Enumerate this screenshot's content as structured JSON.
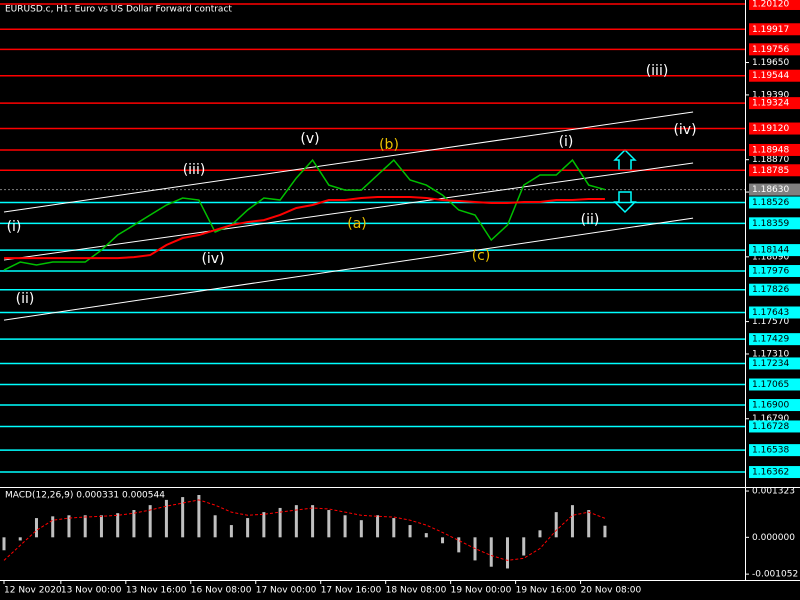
{
  "chart_data": [
    {
      "type": "line",
      "title": "EURUSD.c, H1:  Euro vs US Dollar Forward contract",
      "x": [
        0,
        4,
        8,
        12,
        16,
        20,
        24,
        28,
        32,
        36,
        40,
        44,
        48,
        52,
        56,
        60,
        64,
        68,
        72,
        76,
        80,
        84,
        88,
        92,
        96,
        100,
        104,
        108,
        112,
        116,
        120,
        124,
        128,
        132,
        136,
        140,
        144,
        148
      ],
      "series": [
        {
          "color": "#00c000",
          "values": [
            1.17984,
            1.18048,
            1.18024,
            1.18048,
            1.18048,
            1.18048,
            1.18144,
            1.18265,
            1.18345,
            1.18426,
            1.18506,
            1.18562,
            1.18546,
            1.18289,
            1.18345,
            1.18466,
            1.18562,
            1.18546,
            1.18723,
            1.18867,
            1.18666,
            1.18626,
            1.18626,
            1.18747,
            1.18867,
            1.18707,
            1.18666,
            1.18586,
            1.18466,
            1.18426,
            1.18225,
            1.18345,
            1.18666,
            1.18747,
            1.18747,
            1.18867,
            1.18666,
            1.1863
          ]
        },
        {
          "color": "#ff0000",
          "values": [
            1.1808,
            1.1808,
            1.1808,
            1.1808,
            1.1808,
            1.1808,
            1.1808,
            1.1808,
            1.18088,
            1.18104,
            1.18185,
            1.18241,
            1.18265,
            1.18305,
            1.18345,
            1.18369,
            1.18385,
            1.18426,
            1.18482,
            1.18506,
            1.18546,
            1.18546,
            1.18562,
            1.1857,
            1.1857,
            1.1857,
            1.18562,
            1.18546,
            1.18538,
            1.1853,
            1.18522,
            1.18522,
            1.1853,
            1.1853,
            1.18546,
            1.18546,
            1.18554,
            1.18554
          ]
        }
      ],
      "xlim": [
        0,
        182
      ],
      "xticks": [
        {
          "value": 0,
          "label": "12 Nov 2020"
        },
        {
          "value": 14,
          "label": "13 Nov 00:00"
        },
        {
          "value": 30,
          "label": "13 Nov 16:00"
        },
        {
          "value": 46,
          "label": "16 Nov 08:00"
        },
        {
          "value": 62,
          "label": "17 Nov 00:00"
        },
        {
          "value": 78,
          "label": "17 Nov 16:00"
        },
        {
          "value": 94,
          "label": "18 Nov 08:00"
        },
        {
          "value": 110,
          "label": "19 Nov 00:00"
        },
        {
          "value": 126,
          "label": "19 Nov 16:00"
        },
        {
          "value": 142,
          "label": "20 Nov 08:00"
        }
      ],
      "ylim": [
        1.16242,
        1.20152
      ],
      "yticks": [
        {
          "value": 1.1965,
          "label": "1.19650"
        },
        {
          "value": 1.1939,
          "label": "1.19390"
        },
        {
          "value": 1.1887,
          "label": "1.18870"
        },
        {
          "value": 1.1861,
          "label": "1.18610"
        },
        {
          "value": 1.1809,
          "label": "1.18090"
        },
        {
          "value": 1.1757,
          "label": "1.17570"
        },
        {
          "value": 1.1731,
          "label": "1.17310"
        },
        {
          "value": 1.1679,
          "label": "1.16790"
        }
      ],
      "levels": [
        {
          "value": 1.2012,
          "label": "1.20120",
          "color": "#ff0000"
        },
        {
          "value": 1.19917,
          "label": "1.19917",
          "color": "#ff0000"
        },
        {
          "value": 1.19756,
          "label": "1.19756",
          "color": "#ff0000"
        },
        {
          "value": 1.19544,
          "label": "1.19544",
          "color": "#ff0000"
        },
        {
          "value": 1.19324,
          "label": "1.19324",
          "color": "#ff0000"
        },
        {
          "value": 1.1912,
          "label": "1.19120",
          "color": "#ff0000"
        },
        {
          "value": 1.18948,
          "label": "1.18948",
          "color": "#ff0000"
        },
        {
          "value": 1.18785,
          "label": "1.18785",
          "color": "#ff0000"
        },
        {
          "value": 1.18526,
          "label": "1.18526",
          "color": "#00ffff"
        },
        {
          "value": 1.18359,
          "label": "1.18359",
          "color": "#00ffff"
        },
        {
          "value": 1.18144,
          "label": "1.18144",
          "color": "#00ffff"
        },
        {
          "value": 1.17976,
          "label": "1.17976",
          "color": "#00ffff"
        },
        {
          "value": 1.17826,
          "label": "1.17826",
          "color": "#00ffff"
        },
        {
          "value": 1.17643,
          "label": "1.17643",
          "color": "#00ffff"
        },
        {
          "value": 1.17429,
          "label": "1.17429",
          "color": "#00ffff"
        },
        {
          "value": 1.17234,
          "label": "1.17234",
          "color": "#00ffff"
        },
        {
          "value": 1.17065,
          "label": "1.17065",
          "color": "#00ffff"
        },
        {
          "value": 1.169,
          "label": "1.16900",
          "color": "#00ffff"
        },
        {
          "value": 1.16728,
          "label": "1.16728",
          "color": "#00ffff"
        },
        {
          "value": 1.16538,
          "label": "1.16538",
          "color": "#00ffff"
        },
        {
          "value": 1.16362,
          "label": "1.16362",
          "color": "#00ffff"
        }
      ],
      "current_price": {
        "value": 1.1863,
        "label": "1.18630"
      },
      "trendlines": [
        {
          "x": [
            0,
            169.7
          ],
          "y": [
            1.1845,
            1.19253
          ]
        },
        {
          "x": [
            0,
            169.7
          ],
          "y": [
            1.18064,
            1.18843
          ]
        },
        {
          "x": [
            0,
            169.7
          ],
          "y": [
            1.17582,
            1.18401
          ]
        }
      ],
      "wave_labels": [
        {
          "text": "(i)",
          "color": "#ffffff"
        },
        {
          "text": "(ii)",
          "color": "#ffffff"
        },
        {
          "text": "(iii)",
          "color": "#ffffff"
        },
        {
          "text": "(iv)",
          "color": "#ffffff"
        },
        {
          "text": "(v)",
          "color": "#ffffff"
        },
        {
          "text": "(a)",
          "color": "#e8c000"
        },
        {
          "text": "(b)",
          "color": "#e8c000"
        },
        {
          "text": "(c)",
          "color": "#e8c000"
        },
        {
          "text": "(i)",
          "color": "#ffffff"
        },
        {
          "text": "(ii)",
          "color": "#ffffff"
        },
        {
          "text": "(iii)",
          "color": "#ffffff"
        },
        {
          "text": "(iv)",
          "color": "#ffffff"
        }
      ]
    },
    {
      "type": "bar",
      "title": "MACD(12,26,9) 0.000331 0.000544",
      "series": [
        {
          "color": "#c0c0c0",
          "values": [
            -0.00037,
            -9e-05,
            0.00055,
            0.0006,
            0.00063,
            0.00063,
            0.00063,
            0.00069,
            0.00078,
            0.00092,
            0.00107,
            0.00115,
            0.00121,
            0.00063,
            0.00035,
            0.00055,
            0.00072,
            0.00084,
            0.00092,
            0.00092,
            0.00078,
            0.00063,
            0.00049,
            0.00063,
            0.00055,
            0.00035,
            0.00012,
            -0.00017,
            -0.00043,
            -0.00066,
            -0.00084,
            -0.00089,
            -0.00052,
            0.0002,
            0.00072,
            0.00092,
            0.00078,
            0.000331
          ]
        },
        {
          "color": "#ff0000",
          "values": [
            -0.00066,
            -0.00023,
            0.0002,
            0.00049,
            0.00055,
            0.00058,
            0.0006,
            0.00063,
            0.00069,
            0.00078,
            0.00089,
            0.00098,
            0.00107,
            0.00092,
            0.00072,
            0.00063,
            0.00066,
            0.00072,
            0.00078,
            0.00084,
            0.00081,
            0.00072,
            0.00063,
            0.0006,
            0.00058,
            0.00049,
            0.00035,
            0.00014,
            -9e-05,
            -0.00032,
            -0.00052,
            -0.00066,
            -0.0006,
            -0.00032,
            0.0002,
            0.00063,
            0.00072,
            0.000544
          ]
        }
      ],
      "ylim": [
        -0.00122,
        0.00141
      ],
      "yticks": [
        0.001323,
        {
          "value": 0,
          "label": "0.000000"
        },
        -0.001052
      ]
    }
  ]
}
